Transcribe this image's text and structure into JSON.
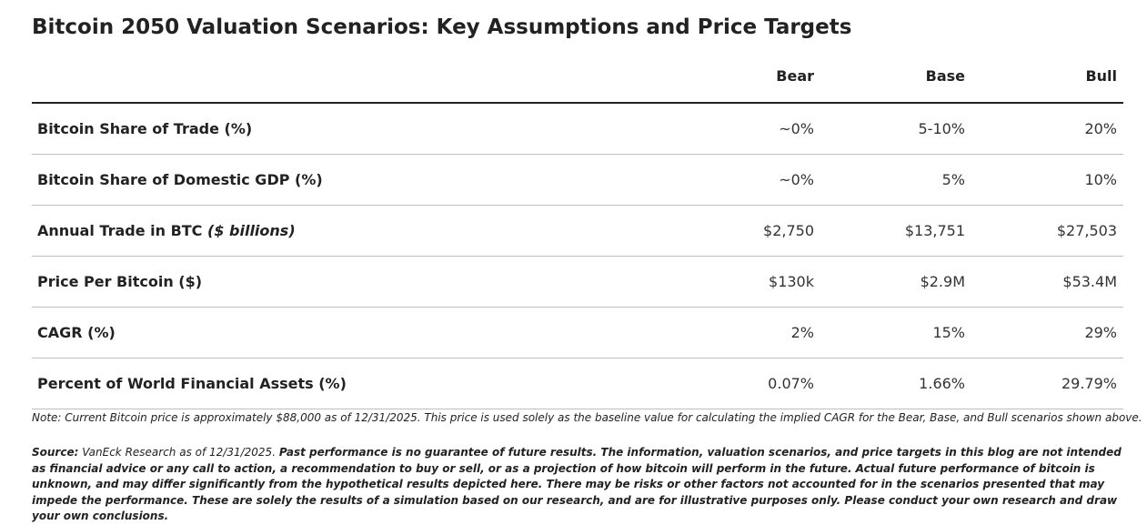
{
  "title": "Bitcoin 2050 Valuation Scenarios: Key Assumptions and Price Targets",
  "columns": [
    "Bear",
    "Base",
    "Bull"
  ],
  "rows": [
    {
      "label": "Bitcoin Share of Trade (%)",
      "label_suffix": "",
      "values": [
        "~0%",
        "5-10%",
        "20%"
      ]
    },
    {
      "label": "Bitcoin Share of Domestic GDP (%)",
      "label_suffix": "",
      "values": [
        "~0%",
        "5%",
        "10%"
      ]
    },
    {
      "label": "Annual Trade in BTC ",
      "label_suffix": "($ billions)",
      "values": [
        "$2,750",
        "$13,751",
        "$27,503"
      ]
    },
    {
      "label": "Price Per Bitcoin ($)",
      "label_suffix": "",
      "values": [
        "$130k",
        "$2.9M",
        "$53.4M"
      ]
    },
    {
      "label": "CAGR (%)",
      "label_suffix": "",
      "values": [
        "2%",
        "15%",
        "29%"
      ]
    },
    {
      "label": "Percent of World Financial Assets (%)",
      "label_suffix": "",
      "values": [
        "0.07%",
        "1.66%",
        "29.79%"
      ]
    }
  ],
  "note": "Note: Current Bitcoin price is approximately $88,000 as of 12/31/2025. This price is used solely as the baseline value for calculating the implied CAGR for the Bear, Base, and Bull scenarios shown above.",
  "source": {
    "prefix": "Source:",
    "text": " VanEck Research as of 12/31/2025. ",
    "disclaimer": "Past performance is no guarantee of future results. The information, valuation scenarios, and price targets in this blog are not intended as financial advice or any call to action, a recommendation to buy or sell, or as a projection of how bitcoin will perform in the future. Actual future performance of bitcoin is unknown, and may differ significantly from the hypothetical results depicted here. There may be risks or other factors not accounted for in the scenarios presented that may impede the performance. These are solely the results of a simulation based on our research, and are for illustrative purposes only. Please conduct your own research and draw your own conclusions."
  }
}
